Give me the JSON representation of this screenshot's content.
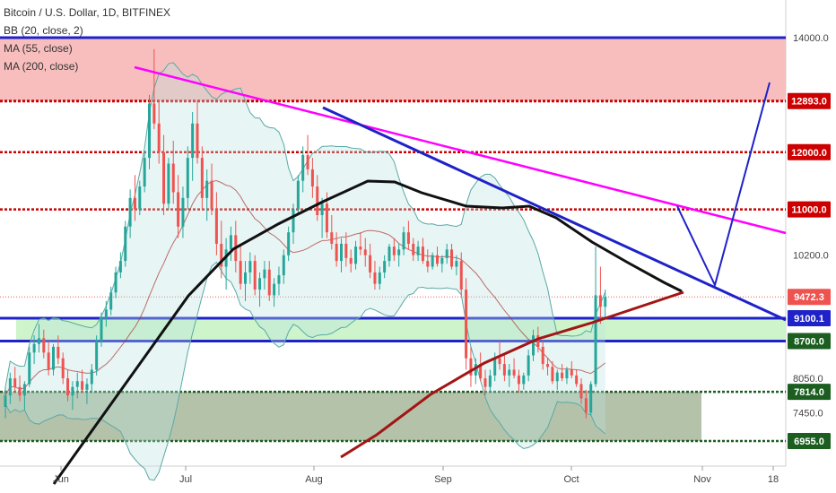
{
  "header": {
    "title": "Bitcoin / U.S. Dollar, 1D, BITFINEX",
    "indicators": [
      "BB (20, close, 2)",
      "MA (55, close)",
      "MA (200, close)"
    ]
  },
  "colors": {
    "up": "#26a69a",
    "down": "#ef5350",
    "resistance": "#cc0000",
    "trend_blue": "#1e22c8",
    "trend_magenta": "#ff00ff",
    "ma55": "#111111",
    "ma200": "#a31515",
    "bb": "#5aa9a4",
    "zone_red": "#f7b7b7",
    "zone_green": "#c9f3c5",
    "zone_olive": "#a8b79b",
    "support": "#1b5e20"
  },
  "chart_data": {
    "type": "candlestick",
    "symbol": "Bitcoin / U.S. Dollar",
    "interval": "1D",
    "exchange": "BITFINEX",
    "y_axis": {
      "ticks": [
        14000.0,
        10200.0,
        8050.0,
        7450.0
      ],
      "ylim": [
        6700,
        14300
      ]
    },
    "x_axis": {
      "labels": [
        "Jun",
        "Jul",
        "Aug",
        "Sep",
        "Oct",
        "Nov",
        "18"
      ]
    },
    "price_labels": [
      {
        "value": "12893.0",
        "color": "#cc0000",
        "text_color": "#ffffff"
      },
      {
        "value": "12000.0",
        "color": "#cc0000",
        "text_color": "#ffffff"
      },
      {
        "value": "11000.0",
        "color": "#cc0000",
        "text_color": "#ffffff"
      },
      {
        "value": "9472.3",
        "color": "#ef5350",
        "text_color": "#ffffff"
      },
      {
        "value": "9100.1",
        "color": "#1e22c8",
        "text_color": "#ffffff"
      },
      {
        "value": "8700.0",
        "color": "#1b5e20",
        "text_color": "#ffffff"
      },
      {
        "value": "7814.0",
        "color": "#1b5e20",
        "text_color": "#ffffff"
      },
      {
        "value": "6955.0",
        "color": "#1b5e20",
        "text_color": "#ffffff"
      }
    ],
    "zones": [
      {
        "name": "red-resistance-zone",
        "from": 12893,
        "to": 14000
      },
      {
        "name": "green-support-zone",
        "from": 8700,
        "to": 9100
      },
      {
        "name": "olive-demand-zone",
        "from": 6955,
        "to": 7814
      }
    ],
    "horizontal_levels": [
      14000,
      12893,
      12000,
      11000,
      9100.1,
      8700,
      7814,
      6955
    ],
    "series": [
      {
        "name": "BB (20, close, 2)",
        "kind": "bollinger"
      },
      {
        "name": "MA (55, close)",
        "kind": "moving-average"
      },
      {
        "name": "MA (200, close)",
        "kind": "moving-average"
      }
    ],
    "candles": [
      [
        7550,
        7900,
        7350,
        7750
      ],
      [
        7750,
        8150,
        7600,
        8050
      ],
      [
        8050,
        8250,
        7800,
        7900
      ],
      [
        7900,
        8100,
        7650,
        7750
      ],
      [
        7750,
        8000,
        7500,
        7950
      ],
      [
        7950,
        8600,
        7900,
        8500
      ],
      [
        8500,
        8800,
        8300,
        8650
      ],
      [
        8650,
        9000,
        8500,
        8750
      ],
      [
        8750,
        8900,
        8400,
        8500
      ],
      [
        8500,
        8700,
        8100,
        8200
      ],
      [
        8200,
        8650,
        8100,
        8600
      ],
      [
        8600,
        8800,
        8300,
        8400
      ],
      [
        8400,
        8500,
        7950,
        8050
      ],
      [
        8050,
        8200,
        7650,
        7750
      ],
      [
        7750,
        8000,
        7500,
        7900
      ],
      [
        7900,
        8150,
        7700,
        8000
      ],
      [
        8000,
        8200,
        7800,
        7850
      ],
      [
        7850,
        8050,
        7600,
        7950
      ],
      [
        7950,
        8300,
        7800,
        8200
      ],
      [
        8200,
        8800,
        8100,
        8700
      ],
      [
        8700,
        9200,
        8600,
        9100
      ],
      [
        9100,
        9400,
        8950,
        9250
      ],
      [
        9250,
        9650,
        9150,
        9550
      ],
      [
        9550,
        10000,
        9450,
        9900
      ],
      [
        9900,
        10250,
        9800,
        10100
      ],
      [
        10100,
        10800,
        10000,
        10700
      ],
      [
        10700,
        11350,
        10500,
        11200
      ],
      [
        11200,
        11600,
        10800,
        11000
      ],
      [
        11000,
        11500,
        10900,
        11400
      ],
      [
        11400,
        12000,
        11300,
        11900
      ],
      [
        11900,
        13000,
        11700,
        12850
      ],
      [
        12850,
        13800,
        12400,
        12500
      ],
      [
        12500,
        12900,
        11800,
        12000
      ],
      [
        12000,
        12300,
        10900,
        11100
      ],
      [
        11100,
        11900,
        11000,
        11800
      ],
      [
        11800,
        12200,
        11100,
        11300
      ],
      [
        11300,
        11600,
        10500,
        10700
      ],
      [
        10700,
        11400,
        10500,
        11200
      ],
      [
        11200,
        12100,
        11000,
        11900
      ],
      [
        11900,
        12700,
        11500,
        12500
      ],
      [
        12500,
        12900,
        11800,
        11900
      ],
      [
        11900,
        12100,
        11000,
        11200
      ],
      [
        11200,
        11700,
        10800,
        11500
      ],
      [
        11500,
        11800,
        10900,
        11000
      ],
      [
        11000,
        11300,
        10200,
        10400
      ],
      [
        10400,
        10800,
        9800,
        10000
      ],
      [
        10000,
        10500,
        9600,
        10300
      ],
      [
        10300,
        10700,
        10100,
        10550
      ],
      [
        10550,
        10800,
        9900,
        10100
      ],
      [
        10100,
        10400,
        9600,
        9700
      ],
      [
        9700,
        10100,
        9400,
        9900
      ],
      [
        9900,
        10250,
        9700,
        10100
      ],
      [
        10100,
        10200,
        9500,
        9600
      ],
      [
        9600,
        9900,
        9300,
        9800
      ],
      [
        9800,
        10100,
        9600,
        9950
      ],
      [
        9950,
        10100,
        9400,
        9500
      ],
      [
        9500,
        9800,
        9300,
        9700
      ],
      [
        9700,
        10000,
        9500,
        9850
      ],
      [
        9850,
        10300,
        9700,
        10200
      ],
      [
        10200,
        10700,
        10100,
        10600
      ],
      [
        10600,
        11100,
        10400,
        11000
      ],
      [
        11000,
        11600,
        10900,
        11500
      ],
      [
        11500,
        12100,
        11300,
        11950
      ],
      [
        11950,
        12300,
        11600,
        11700
      ],
      [
        11700,
        11900,
        11200,
        11400
      ],
      [
        11400,
        11600,
        10800,
        10900
      ],
      [
        10900,
        11200,
        10500,
        11100
      ],
      [
        11100,
        11300,
        10500,
        10600
      ],
      [
        10600,
        10900,
        10300,
        10400
      ],
      [
        10400,
        10600,
        10000,
        10100
      ],
      [
        10100,
        10500,
        9900,
        10400
      ],
      [
        10400,
        10600,
        10000,
        10150
      ],
      [
        10150,
        10300,
        9900,
        10050
      ],
      [
        10050,
        10450,
        9950,
        10350
      ],
      [
        10350,
        10600,
        10200,
        10300
      ],
      [
        10300,
        10500,
        10000,
        10200
      ],
      [
        10200,
        10400,
        9800,
        9900
      ],
      [
        9900,
        10100,
        9600,
        9700
      ],
      [
        9700,
        10000,
        9600,
        9900
      ],
      [
        9900,
        10200,
        9800,
        10100
      ],
      [
        10100,
        10400,
        10000,
        10350
      ],
      [
        10350,
        10500,
        10100,
        10200
      ],
      [
        10200,
        10400,
        10000,
        10300
      ],
      [
        10300,
        10700,
        10200,
        10600
      ],
      [
        10600,
        10800,
        10300,
        10400
      ],
      [
        10400,
        10500,
        10100,
        10200
      ],
      [
        10200,
        10450,
        10100,
        10350
      ],
      [
        10350,
        10500,
        10050,
        10100
      ],
      [
        10100,
        10300,
        9900,
        10000
      ],
      [
        10000,
        10250,
        9950,
        10200
      ],
      [
        10200,
        10350,
        10000,
        10050
      ],
      [
        10050,
        10200,
        9900,
        10150
      ],
      [
        10150,
        10400,
        10050,
        10300
      ],
      [
        10300,
        10400,
        9950,
        10000
      ],
      [
        10000,
        10200,
        9850,
        10100
      ],
      [
        10100,
        10250,
        9500,
        9600
      ],
      [
        9600,
        9800,
        8200,
        8400
      ],
      [
        8400,
        8600,
        7900,
        8100
      ],
      [
        8100,
        8400,
        7950,
        8300
      ],
      [
        8300,
        8500,
        8000,
        8050
      ],
      [
        8050,
        8200,
        7750,
        7900
      ],
      [
        7900,
        8200,
        7800,
        8100
      ],
      [
        8100,
        8500,
        8000,
        8400
      ],
      [
        8400,
        8700,
        8200,
        8300
      ],
      [
        8300,
        8450,
        8000,
        8100
      ],
      [
        8100,
        8300,
        7900,
        8200
      ],
      [
        8200,
        8400,
        8050,
        8100
      ],
      [
        8100,
        8200,
        7800,
        7950
      ],
      [
        7950,
        8150,
        7850,
        8100
      ],
      [
        8100,
        8550,
        8000,
        8450
      ],
      [
        8450,
        8900,
        8350,
        8800
      ],
      [
        8800,
        8950,
        8500,
        8600
      ],
      [
        8600,
        8700,
        8200,
        8300
      ],
      [
        8300,
        8400,
        8100,
        8250
      ],
      [
        8250,
        8350,
        7950,
        8000
      ],
      [
        8000,
        8200,
        7850,
        8150
      ],
      [
        8150,
        8300,
        8000,
        8050
      ],
      [
        8050,
        8250,
        7950,
        8200
      ],
      [
        8200,
        8350,
        8050,
        8100
      ],
      [
        8100,
        8200,
        7900,
        7950
      ],
      [
        7950,
        8050,
        7600,
        7700
      ],
      [
        7700,
        7850,
        7350,
        7450
      ],
      [
        7450,
        8000,
        7400,
        7950
      ],
      [
        7950,
        10350,
        7900,
        9500
      ],
      [
        9500,
        10000,
        9000,
        9300
      ],
      [
        9300,
        9600,
        9100,
        9472
      ]
    ]
  }
}
